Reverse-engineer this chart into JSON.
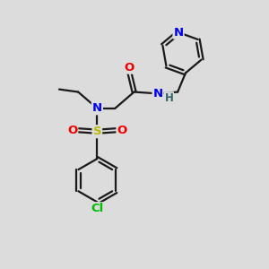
{
  "bg_color": "#dcdcdc",
  "bond_color": "#1a1a1a",
  "atom_colors": {
    "N": "#0000ee",
    "O": "#ee0000",
    "S": "#bbbb00",
    "Cl": "#00bb00",
    "H": "#336666",
    "C": "#1a1a1a"
  },
  "figsize": [
    3.0,
    3.0
  ],
  "dpi": 100,
  "lw": 1.6,
  "fontsize": 9.5
}
